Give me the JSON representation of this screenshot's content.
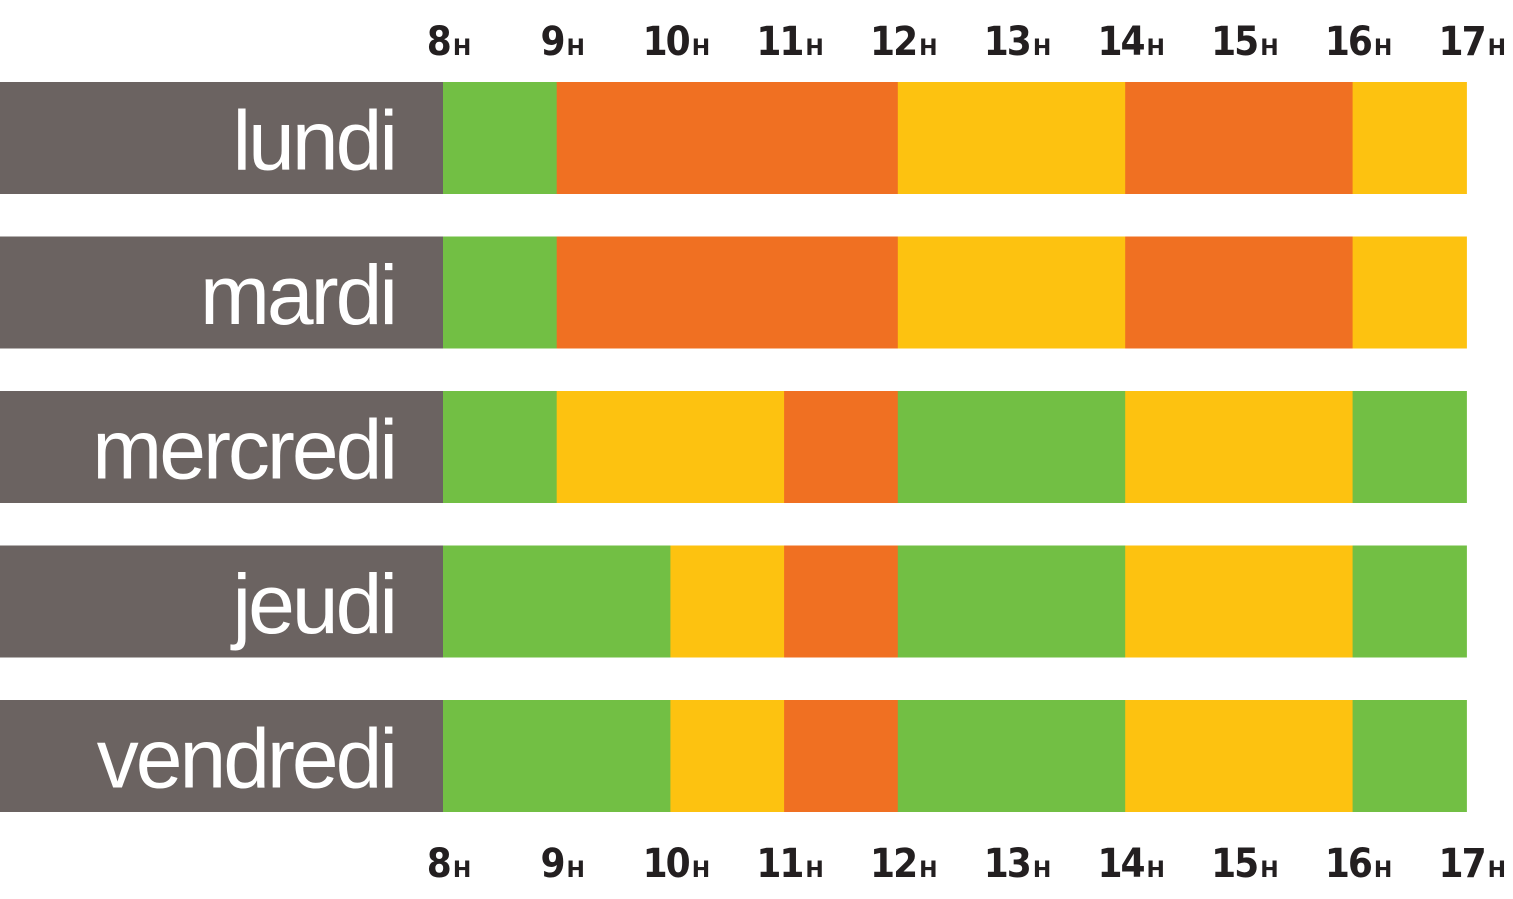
{
  "chart_data": {
    "type": "heatmap",
    "hours": [
      "8",
      "9",
      "10",
      "11",
      "12",
      "13",
      "14",
      "15",
      "16",
      "17"
    ],
    "hour_unit": "H",
    "rows": [
      {
        "day": "lundi",
        "levels": [
          "green",
          "orange",
          "orange",
          "orange",
          "yellow",
          "yellow",
          "orange",
          "orange",
          "yellow"
        ]
      },
      {
        "day": "mardi",
        "levels": [
          "green",
          "orange",
          "orange",
          "orange",
          "yellow",
          "yellow",
          "orange",
          "orange",
          "yellow"
        ]
      },
      {
        "day": "mercredi",
        "levels": [
          "green",
          "yellow",
          "yellow",
          "orange",
          "green",
          "green",
          "yellow",
          "yellow",
          "green"
        ]
      },
      {
        "day": "jeudi",
        "levels": [
          "green",
          "green",
          "yellow",
          "orange",
          "green",
          "green",
          "yellow",
          "yellow",
          "green"
        ]
      },
      {
        "day": "vendredi",
        "levels": [
          "green",
          "green",
          "yellow",
          "orange",
          "green",
          "green",
          "yellow",
          "yellow",
          "green"
        ]
      }
    ],
    "colors": {
      "green": "#72bf44",
      "yellow": "#fdc210",
      "orange": "#f07022",
      "label_bg": "#6b6361",
      "label_text": "#ffffff",
      "axis_text": "#231f20"
    },
    "axis_labels_position": "top and bottom"
  }
}
